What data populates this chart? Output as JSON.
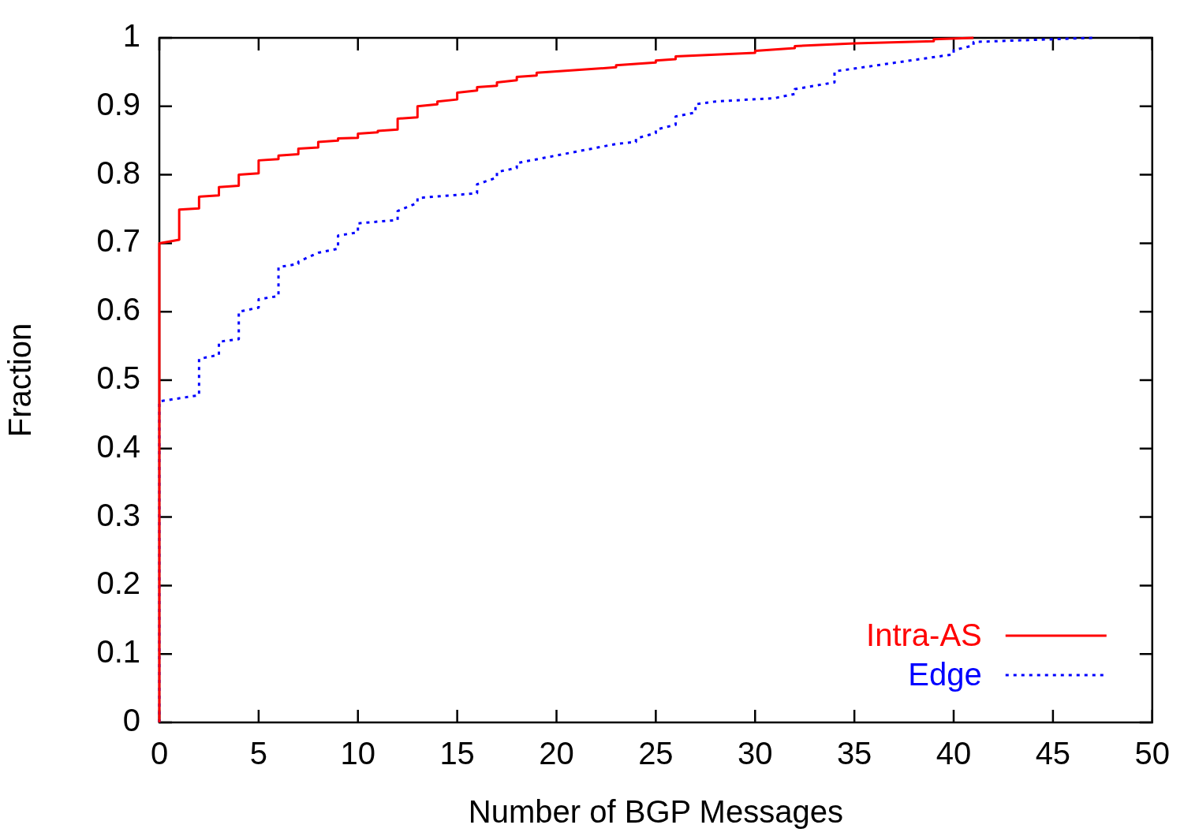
{
  "chart_data": {
    "type": "line",
    "xlabel": "Number of BGP Messages",
    "ylabel": "Fraction",
    "xlim": [
      0,
      50
    ],
    "ylim": [
      0,
      1
    ],
    "xticks": [
      0,
      5,
      10,
      15,
      20,
      25,
      30,
      35,
      40,
      45,
      50
    ],
    "yticks": [
      0,
      0.1,
      0.2,
      0.3,
      0.4,
      0.5,
      0.6,
      0.7,
      0.8,
      0.9,
      1
    ],
    "grid": false,
    "legend": "bottom right",
    "marker": "none",
    "series": [
      {
        "name": "Intra-AS",
        "color": "#ff0000",
        "line_style": "solid",
        "x": [
          0,
          0,
          1,
          1,
          2,
          2,
          3,
          3,
          4,
          4,
          5,
          5,
          6,
          6,
          7,
          7,
          8,
          8,
          9,
          9,
          10,
          10,
          11,
          11,
          12,
          12,
          13,
          13,
          14,
          14,
          15,
          15,
          16,
          16,
          17,
          17,
          18,
          18,
          19,
          19,
          23,
          23,
          25,
          25,
          26,
          26,
          30,
          30,
          32,
          32,
          35,
          39,
          39,
          41
        ],
        "values": [
          0,
          0.7,
          0.705,
          0.749,
          0.751,
          0.768,
          0.77,
          0.782,
          0.784,
          0.8,
          0.802,
          0.821,
          0.823,
          0.828,
          0.83,
          0.838,
          0.84,
          0.848,
          0.85,
          0.853,
          0.854,
          0.86,
          0.862,
          0.864,
          0.866,
          0.882,
          0.884,
          0.9,
          0.903,
          0.907,
          0.91,
          0.92,
          0.923,
          0.928,
          0.93,
          0.935,
          0.938,
          0.943,
          0.945,
          0.949,
          0.957,
          0.96,
          0.964,
          0.967,
          0.969,
          0.973,
          0.978,
          0.981,
          0.985,
          0.988,
          0.992,
          0.995,
          0.998,
          1.0
        ]
      },
      {
        "name": "Edge",
        "color": "#0000ff",
        "line_style": "dotted",
        "x": [
          0,
          0,
          2,
          2,
          3,
          3,
          4,
          4,
          5,
          5,
          6,
          6,
          7,
          7,
          8,
          9,
          9,
          10,
          10,
          12,
          12,
          13,
          13,
          16,
          16,
          17,
          17,
          18,
          18,
          23,
          24,
          24,
          25,
          25,
          26,
          26,
          27,
          27,
          28,
          31,
          32,
          32,
          34,
          34,
          40,
          40,
          41,
          41,
          47
        ],
        "values": [
          0,
          0.469,
          0.478,
          0.531,
          0.537,
          0.556,
          0.56,
          0.6,
          0.606,
          0.618,
          0.623,
          0.665,
          0.67,
          0.673,
          0.686,
          0.692,
          0.711,
          0.716,
          0.729,
          0.734,
          0.747,
          0.759,
          0.766,
          0.773,
          0.786,
          0.796,
          0.804,
          0.81,
          0.817,
          0.845,
          0.848,
          0.853,
          0.861,
          0.866,
          0.873,
          0.885,
          0.891,
          0.903,
          0.907,
          0.912,
          0.918,
          0.925,
          0.935,
          0.951,
          0.976,
          0.982,
          0.989,
          0.994,
          1.0
        ]
      }
    ]
  }
}
